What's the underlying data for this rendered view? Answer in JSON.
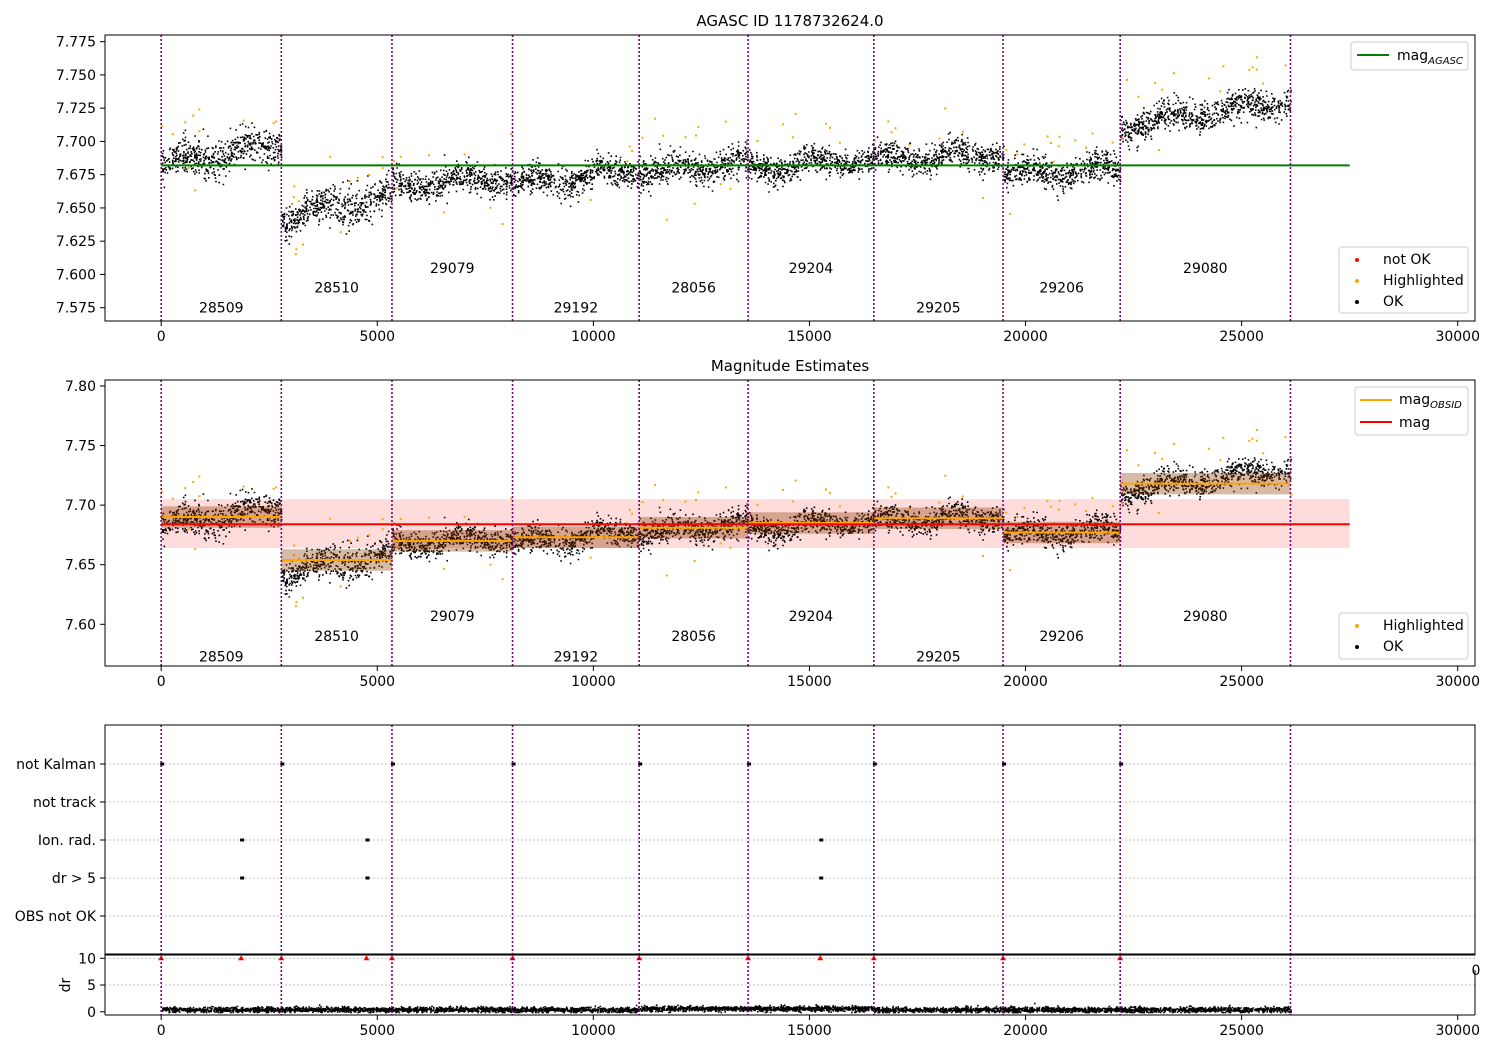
{
  "chart_data": [
    {
      "type": "scatter",
      "title": "AGASC ID 1178732624.0",
      "xlim": [
        -1300,
        30400
      ],
      "ylim": [
        7.565,
        7.78
      ],
      "xticks": [
        0,
        5000,
        10000,
        15000,
        20000,
        25000,
        30000
      ],
      "yticks": [
        7.575,
        7.6,
        7.625,
        7.65,
        7.675,
        7.7,
        7.725,
        7.75,
        7.775
      ],
      "ytick_labels": [
        "7.575",
        "7.600",
        "7.625",
        "7.650",
        "7.675",
        "7.700",
        "7.725",
        "7.750",
        "7.775"
      ],
      "mag_agasc": 7.682,
      "mag_agasc_xrange": [
        0,
        27500
      ],
      "obsid_boundaries": [
        0,
        2780,
        5340,
        8130,
        11060,
        13580,
        16490,
        19480,
        22190,
        26130
      ],
      "obsids": [
        "28509",
        "28510",
        "29079",
        "29192",
        "28056",
        "29204",
        "29205",
        "29206",
        "29080"
      ],
      "obsid_label_y": [
        7.575,
        7.59,
        7.605,
        7.575,
        7.59,
        7.605,
        7.575,
        7.59,
        7.605
      ],
      "segments": [
        {
          "start": 0,
          "end": 2780,
          "mag_start": 7.683,
          "mag_end": 7.7,
          "spread": 0.012
        },
        {
          "start": 2780,
          "end": 5340,
          "mag_start": 7.643,
          "mag_end": 7.66,
          "spread": 0.012
        },
        {
          "start": 5340,
          "end": 8130,
          "mag_start": 7.667,
          "mag_end": 7.673,
          "spread": 0.01
        },
        {
          "start": 8130,
          "end": 11060,
          "mag_start": 7.668,
          "mag_end": 7.679,
          "spread": 0.01
        },
        {
          "start": 11060,
          "end": 13580,
          "mag_start": 7.677,
          "mag_end": 7.685,
          "spread": 0.011
        },
        {
          "start": 13580,
          "end": 16490,
          "mag_start": 7.68,
          "mag_end": 7.688,
          "spread": 0.009
        },
        {
          "start": 16490,
          "end": 19480,
          "mag_start": 7.687,
          "mag_end": 7.691,
          "spread": 0.01
        },
        {
          "start": 19480,
          "end": 22190,
          "mag_start": 7.676,
          "mag_end": 7.68,
          "spread": 0.01
        },
        {
          "start": 22190,
          "end": 26130,
          "mag_start": 7.712,
          "mag_end": 7.732,
          "spread": 0.01
        }
      ],
      "legend_upper": [
        "mag_AGASC"
      ],
      "legend_upper_label": "mag",
      "legend_upper_sub": "AGASC",
      "legend_lower": [
        "not OK",
        "Highlighted",
        "OK"
      ]
    },
    {
      "type": "scatter",
      "title": "Magnitude Estimates",
      "xlim": [
        -1300,
        30400
      ],
      "ylim": [
        7.565,
        7.805
      ],
      "xticks": [
        0,
        5000,
        10000,
        15000,
        20000,
        25000,
        30000
      ],
      "yticks": [
        7.6,
        7.65,
        7.7,
        7.75,
        7.8
      ],
      "ytick_labels": [
        "7.60",
        "7.65",
        "7.70",
        "7.75",
        "7.80"
      ],
      "mag": 7.684,
      "mag_band": [
        7.664,
        7.705
      ],
      "mag_xrange": [
        0,
        27500
      ],
      "mag_obsid": [
        7.69,
        7.654,
        7.67,
        7.673,
        7.681,
        7.685,
        7.689,
        7.677,
        7.718
      ],
      "obsid_label_y": [
        7.573,
        7.59,
        7.607,
        7.573,
        7.59,
        7.607,
        7.573,
        7.59,
        7.607
      ],
      "legend_upper_label_1": "mag",
      "legend_upper_sub_1": "OBSID",
      "legend_upper_label_2": "mag",
      "legend_lower": [
        "Highlighted",
        "OK"
      ]
    },
    {
      "type": "scatter",
      "categories": [
        "not Kalman",
        "not track",
        "Ion. rad.",
        "dr > 5",
        "OBS not OK"
      ],
      "flag_times": {
        "not Kalman": [
          0,
          2780,
          5340,
          8130,
          11060,
          13580,
          16490,
          19480,
          22190
        ],
        "not track": [],
        "Ion. rad.": [
          1850,
          4750,
          15250
        ],
        "dr > 5": [
          1850,
          4750,
          15250
        ],
        "OBS not OK": []
      },
      "xlim": [
        -1300,
        30400
      ]
    },
    {
      "type": "scatter",
      "ylabel": "dr",
      "yticks": [
        0,
        5,
        10
      ],
      "ylim": [
        -0.6,
        10.8
      ],
      "xlim": [
        -1300,
        30400
      ],
      "xticks": [
        0,
        5000,
        10000,
        15000,
        20000,
        25000,
        30000
      ],
      "dr_typical": 0.5,
      "dr_capped_value": 10,
      "dr_capped_times": [
        0,
        1850,
        2780,
        4750,
        5340,
        8130,
        11060,
        13580,
        15250,
        16490,
        19480,
        22190
      ],
      "overlap_tick_fragment": "0"
    }
  ],
  "colors": {
    "ok": "#000000",
    "highlighted": "#ffa500",
    "not_ok": "#ff0000",
    "agasc_line": "#008000",
    "mag_line": "#ff0000",
    "mag_band": "#ffdcdc",
    "obsid_line": "#ffa500",
    "boundary": "#800080",
    "grid": "#b0b0b0"
  }
}
